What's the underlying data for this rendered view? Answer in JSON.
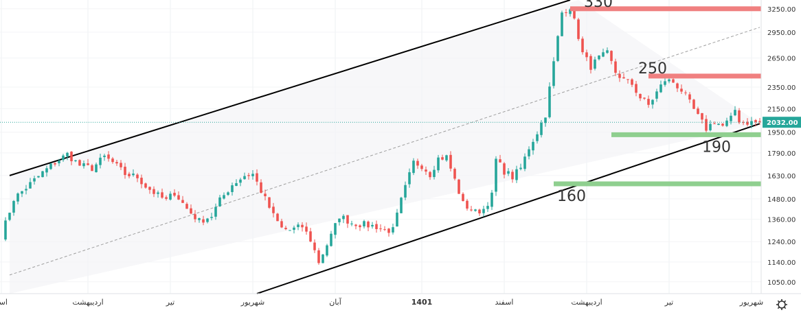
{
  "chart_data": {
    "type": "candlestick",
    "title": "",
    "xlabel": "",
    "ylabel": "",
    "ylim": [
      1000,
      3370
    ],
    "y_ticks": [
      1050,
      1140,
      1240,
      1360,
      1480,
      1630,
      1790,
      1950,
      2150,
      2350,
      2650,
      2950,
      3250
    ],
    "y_tick_labels": [
      "1050.00",
      "1140.00",
      "1240.00",
      "1360.00",
      "1480.00",
      "1630.00",
      "1790.00",
      "1950.00",
      "2150.00",
      "2350.00",
      "2650.00",
      "2950.00",
      "3250.00"
    ],
    "y_scale": "log",
    "x_tick_labels": [
      "اسفند",
      "اردیبهشت",
      "تیر",
      "شهریور",
      "آبان",
      "1401",
      "اسفند",
      "اردیبهشت",
      "تیر",
      "شهریور"
    ],
    "x_tick_positions": [
      0,
      21,
      41,
      61,
      81,
      102,
      122,
      142,
      162,
      182
    ],
    "x_tick_bold": [
      false,
      false,
      false,
      false,
      false,
      true,
      false,
      false,
      false,
      false
    ],
    "last_price": 2032,
    "last_price_label": "2032.00",
    "colors": {
      "up": "#26a69a",
      "down": "#ef5350",
      "resistance": "#f08080",
      "support": "#8fcf8f",
      "channel": "#000000",
      "midline": "#9e9e9e",
      "last_price_bg": "#26a69a"
    },
    "path_points": [
      [
        0,
        1270
      ],
      [
        3,
        1480
      ],
      [
        6,
        1550
      ],
      [
        10,
        1650
      ],
      [
        13,
        1720
      ],
      [
        16,
        1780
      ],
      [
        19,
        1700
      ],
      [
        22,
        1680
      ],
      [
        25,
        1760
      ],
      [
        27,
        1720
      ],
      [
        30,
        1640
      ],
      [
        33,
        1620
      ],
      [
        35,
        1560
      ],
      [
        38,
        1500
      ],
      [
        40,
        1470
      ],
      [
        42,
        1520
      ],
      [
        45,
        1420
      ],
      [
        48,
        1350
      ],
      [
        51,
        1380
      ],
      [
        53,
        1470
      ],
      [
        56,
        1570
      ],
      [
        59,
        1630
      ],
      [
        61,
        1640
      ],
      [
        63,
        1530
      ],
      [
        66,
        1380
      ],
      [
        68,
        1310
      ],
      [
        70,
        1300
      ],
      [
        73,
        1320
      ],
      [
        75,
        1250
      ],
      [
        77,
        1140
      ],
      [
        80,
        1270
      ],
      [
        82,
        1380
      ],
      [
        85,
        1340
      ],
      [
        88,
        1330
      ],
      [
        91,
        1320
      ],
      [
        93,
        1300
      ],
      [
        95,
        1300
      ],
      [
        97,
        1470
      ],
      [
        100,
        1720
      ],
      [
        102,
        1700
      ],
      [
        104,
        1640
      ],
      [
        106,
        1750
      ],
      [
        108,
        1760
      ],
      [
        110,
        1600
      ],
      [
        112,
        1450
      ],
      [
        115,
        1400
      ],
      [
        117,
        1420
      ],
      [
        119,
        1500
      ],
      [
        120,
        1740
      ],
      [
        122,
        1660
      ],
      [
        124,
        1620
      ],
      [
        126,
        1680
      ],
      [
        128,
        1830
      ],
      [
        130,
        1950
      ],
      [
        132,
        2100
      ],
      [
        134,
        2600
      ],
      [
        136,
        3200
      ],
      [
        138,
        3280
      ],
      [
        140,
        2900
      ],
      [
        141,
        2700
      ],
      [
        143,
        2560
      ],
      [
        145,
        2650
      ],
      [
        147,
        2700
      ],
      [
        149,
        2500
      ],
      [
        151,
        2420
      ],
      [
        153,
        2380
      ],
      [
        155,
        2250
      ],
      [
        157,
        2180
      ],
      [
        159,
        2300
      ],
      [
        161,
        2420
      ],
      [
        163,
        2400
      ],
      [
        165,
        2320
      ],
      [
        167,
        2200
      ],
      [
        169,
        2080
      ],
      [
        171,
        1980
      ],
      [
        173,
        2040
      ],
      [
        175,
        2000
      ],
      [
        177,
        2060
      ],
      [
        178,
        2140
      ],
      [
        179,
        2050
      ],
      [
        180,
        2032
      ]
    ],
    "channel": {
      "upper": [
        [
          2,
          1630
        ],
        [
          138,
          3370
        ]
      ],
      "lower": [
        [
          62,
          1000
        ],
        [
          184,
          2020
        ]
      ],
      "middle": [
        [
          2,
          1080
        ],
        [
          184,
          3010
        ]
      ]
    },
    "levels": [
      {
        "value": 3250,
        "label": "330",
        "type": "resistance",
        "x_start": 138
      },
      {
        "value": 2460,
        "label": "250",
        "type": "resistance",
        "x_start": 157
      },
      {
        "value": 1930,
        "label": "190",
        "type": "support",
        "x_start": 148
      },
      {
        "value": 1575,
        "label": "160",
        "type": "support",
        "x_start": 134
      }
    ]
  }
}
